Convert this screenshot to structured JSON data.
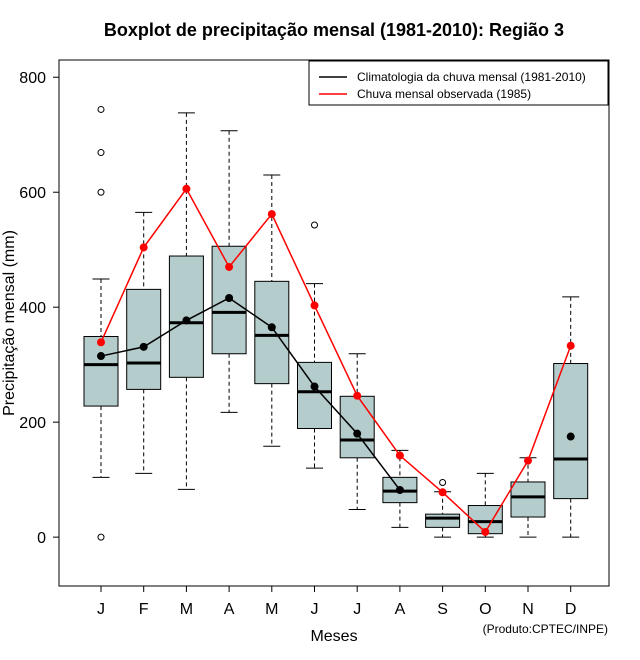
{
  "chart_data": {
    "type": "boxplot",
    "title": "Boxplot de precipitação mensal (1981-2010): Região 3",
    "xlabel": "Meses",
    "ylabel": "Precipitação mensal (mm)",
    "ylim": [
      -85,
      830
    ],
    "yticks": [
      0,
      200,
      400,
      600,
      800
    ],
    "categories": [
      "J",
      "F",
      "M",
      "A",
      "M",
      "J",
      "J",
      "A",
      "S",
      "O",
      "N",
      "D"
    ],
    "boxes": [
      {
        "whisker_low": 104,
        "q1": 228,
        "median": 300,
        "q3": 349,
        "whisker_high": 449,
        "outliers": [
          744,
          669,
          600,
          0
        ]
      },
      {
        "whisker_low": 111,
        "q1": 257,
        "median": 303,
        "q3": 431,
        "whisker_high": 565,
        "outliers": []
      },
      {
        "whisker_low": 83,
        "q1": 278,
        "median": 373,
        "q3": 489,
        "whisker_high": 738,
        "outliers": []
      },
      {
        "whisker_low": 217,
        "q1": 319,
        "median": 391,
        "q3": 506,
        "whisker_high": 707,
        "outliers": []
      },
      {
        "whisker_low": 158,
        "q1": 267,
        "median": 351,
        "q3": 445,
        "whisker_high": 630,
        "outliers": []
      },
      {
        "whisker_low": 120,
        "q1": 189,
        "median": 253,
        "q3": 304,
        "whisker_high": 441,
        "outliers": [
          543
        ]
      },
      {
        "whisker_low": 48,
        "q1": 138,
        "median": 169,
        "q3": 245,
        "whisker_high": 319,
        "outliers": []
      },
      {
        "whisker_low": 17,
        "q1": 60,
        "median": 80,
        "q3": 104,
        "whisker_high": 151,
        "outliers": []
      },
      {
        "whisker_low": 0,
        "q1": 17,
        "median": 33,
        "q3": 40,
        "whisker_high": 79,
        "outliers": [
          95
        ]
      },
      {
        "whisker_low": 0,
        "q1": 6,
        "median": 27,
        "q3": 55,
        "whisker_high": 111,
        "outliers": []
      },
      {
        "whisker_low": 0,
        "q1": 35,
        "median": 70,
        "q3": 96,
        "whisker_high": 138,
        "outliers": []
      },
      {
        "whisker_low": 0,
        "q1": 67,
        "median": 136,
        "q3": 302,
        "whisker_high": 418,
        "outliers": []
      }
    ],
    "series": [
      {
        "name": "Climatologia da chuva mensal (1981-2010)",
        "color": "#000000",
        "values": [
          315,
          331,
          377,
          416,
          365,
          262,
          180,
          82,
          null,
          null,
          null,
          175
        ]
      },
      {
        "name": "Chuva mensal observada (1985)",
        "color": "#ff0000",
        "values": [
          339,
          504,
          606,
          470,
          562,
          403,
          246,
          142,
          78,
          9,
          133,
          333
        ]
      }
    ],
    "legend_position": "top-right",
    "box_fill": "#b4cccb",
    "footer": "(Produto:CPTEC/INPE)"
  }
}
